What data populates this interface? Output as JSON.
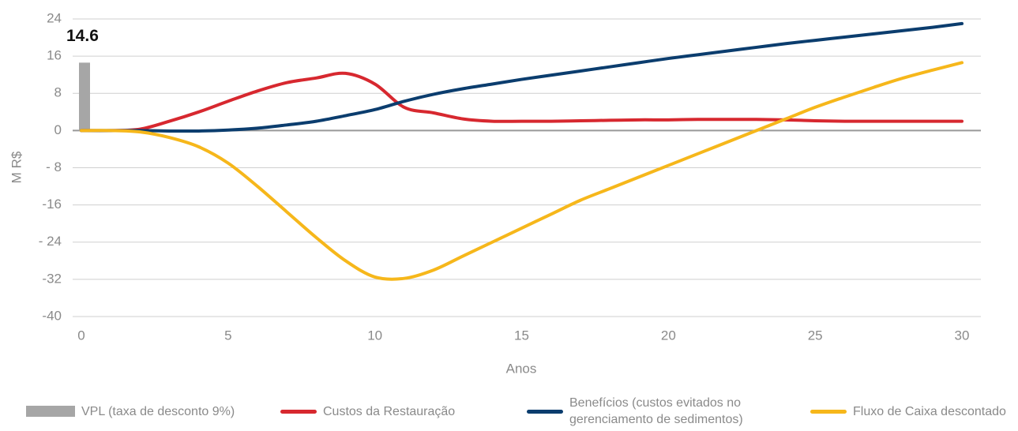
{
  "chart_data": {
    "type": "line",
    "y_label": "M R$",
    "x_label": "Anos",
    "xlim": [
      0,
      30
    ],
    "xticks": [
      0,
      5,
      10,
      15,
      20,
      25,
      30
    ],
    "ylim": [
      -40,
      24
    ],
    "yticks": [
      24,
      16,
      8,
      0,
      {
        "value": -8,
        "label": "- 8"
      },
      -16,
      {
        "value": -24,
        "label": "- 24"
      },
      -32,
      -40
    ],
    "grid": true,
    "legend": "bottom",
    "x": [
      0,
      1,
      2,
      3,
      4,
      5,
      6,
      7,
      8,
      9,
      10,
      11,
      12,
      13,
      14,
      15,
      16,
      17,
      18,
      19,
      20,
      21,
      22,
      23,
      24,
      25,
      26,
      27,
      28,
      29,
      30
    ],
    "series": [
      {
        "name": "VPL (taxa de desconto 9%)",
        "type": "bar",
        "color": "#a6a6a6",
        "x": [
          0
        ],
        "values": [
          14.6
        ]
      },
      {
        "name": "Custos da Restauração",
        "type": "line",
        "color": "#d7282f",
        "values": [
          0,
          0,
          0.3,
          2,
          4,
          6.3,
          8.5,
          10.3,
          11.3,
          12.3,
          10,
          5,
          3.8,
          2.5,
          2,
          2,
          2,
          2.1,
          2.2,
          2.3,
          2.3,
          2.4,
          2.4,
          2.4,
          2.3,
          2.1,
          2,
          2,
          2,
          2,
          2
        ]
      },
      {
        "name": "Benefícios (custos evitados no gerenciamento de sedimentos)",
        "type": "line",
        "color": "#0b3d6e",
        "values": [
          0,
          0,
          0,
          -0.1,
          -0.1,
          0.1,
          0.5,
          1.2,
          2,
          3.2,
          4.5,
          6.3,
          7.8,
          9,
          10,
          11,
          11.9,
          12.8,
          13.7,
          14.6,
          15.5,
          16.3,
          17.1,
          17.9,
          18.7,
          19.4,
          20.1,
          20.8,
          21.5,
          22.2,
          23
        ]
      },
      {
        "name": "Fluxo de Caixa descontado",
        "type": "line",
        "color": "#f6b71b",
        "values": [
          0,
          0,
          -0.3,
          -1.5,
          -3.5,
          -7,
          -12,
          -17.5,
          -23,
          -28,
          -31.5,
          -31.8,
          -30,
          -27,
          -24,
          -21,
          -18,
          -15,
          -12.5,
          -10,
          -7.5,
          -5,
          -2.5,
          0,
          2.5,
          5,
          7.2,
          9.3,
          11.3,
          13,
          14.6
        ]
      }
    ]
  }
}
